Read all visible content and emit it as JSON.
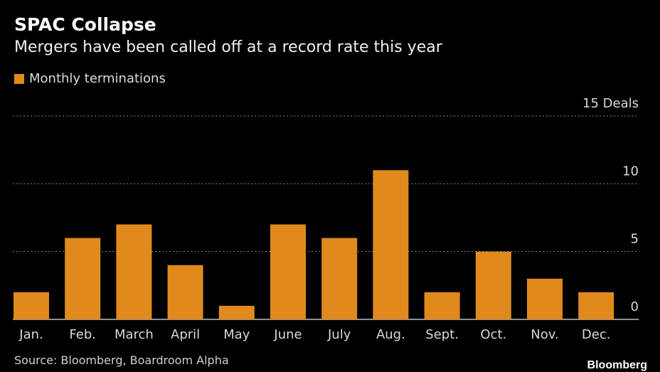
{
  "title": "SPAC Collapse",
  "subtitle": "Mergers have been called off at a record rate this year",
  "legend": {
    "label": "Monthly terminations",
    "color": "#e08a1e"
  },
  "source": "Source: Bloomberg, Boardroom Alpha",
  "brand": "Bloomberg",
  "colors": {
    "background": "#000000",
    "bar": "#e08a1e",
    "grid": "#8a8a8a",
    "text": "#d8d8d8"
  },
  "chart_data": {
    "type": "bar",
    "title": "SPAC Collapse",
    "subtitle": "Mergers have been called off at a record rate this year",
    "xlabel": "",
    "ylabel": "Deals",
    "categories": [
      "Jan.",
      "Feb.",
      "March",
      "April",
      "May",
      "June",
      "July",
      "Aug.",
      "Sept.",
      "Oct.",
      "Nov.",
      "Dec."
    ],
    "series": [
      {
        "name": "Monthly terminations",
        "values": [
          2,
          6,
          7,
          4,
          1,
          7,
          6,
          11,
          2,
          5,
          3,
          2
        ]
      }
    ],
    "ylim": [
      0,
      15
    ],
    "yticks": [
      0,
      5,
      10,
      15
    ],
    "ytick_labels": [
      "0",
      "5",
      "10",
      "15 Deals"
    ],
    "grid": true,
    "legend_position": "top-left"
  }
}
